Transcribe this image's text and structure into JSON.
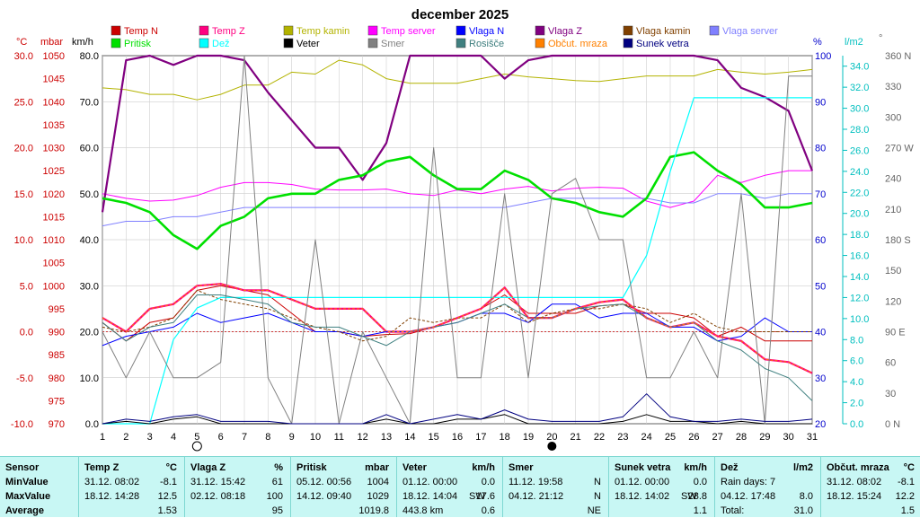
{
  "chart_data": {
    "type": "line",
    "title": "december 2025",
    "x": [
      1,
      2,
      3,
      4,
      5,
      6,
      7,
      8,
      9,
      10,
      11,
      12,
      13,
      14,
      15,
      16,
      17,
      18,
      19,
      20,
      21,
      22,
      23,
      24,
      25,
      26,
      27,
      28,
      29,
      30,
      31
    ],
    "axes": {
      "temp": {
        "label": "°C",
        "range": [
          -10,
          30
        ],
        "ticks": [
          "30.0",
          "25.0",
          "20.0",
          "15.0",
          "10.0",
          "5.0",
          "0.0",
          "-5.0",
          "-10.0"
        ]
      },
      "pressure": {
        "label": "mbar",
        "range": [
          970,
          1050
        ],
        "ticks": [
          "1050",
          "1045",
          "1040",
          "1035",
          "1030",
          "1025",
          "1020",
          "1015",
          "1010",
          "1005",
          "1000",
          "995",
          "990",
          "985",
          "980",
          "975",
          "970"
        ]
      },
      "wind": {
        "label": "km/h",
        "range": [
          0,
          80
        ],
        "ticks": [
          "80.0",
          "70.0",
          "60.0",
          "50.0",
          "40.0",
          "30.0",
          "20.0",
          "10.0",
          "0.0"
        ]
      },
      "humidity": {
        "label": "%",
        "range": [
          20,
          100
        ],
        "ticks": [
          "100",
          "90",
          "80",
          "70",
          "60",
          "50",
          "40",
          "30",
          "20"
        ]
      },
      "rain": {
        "label": "l/m2",
        "range": [
          0,
          35
        ],
        "ticks": [
          "34.0",
          "32.0",
          "30.0",
          "28.0",
          "26.0",
          "24.0",
          "22.0",
          "20.0",
          "18.0",
          "16.0",
          "14.0",
          "12.0",
          "10.0",
          "8.0",
          "6.0",
          "4.0",
          "2.0",
          "0.0"
        ]
      },
      "direction": {
        "label": "°",
        "range": [
          0,
          360
        ],
        "ticks": [
          "360 N",
          "330",
          "300",
          "270 W",
          "240",
          "210",
          "180 S",
          "150",
          "120",
          "90 E",
          "60",
          "30",
          "0 N"
        ]
      }
    },
    "series": [
      {
        "name": "Temp N",
        "color": "#cc0000",
        "axis": "temp",
        "values": [
          1,
          -1,
          1,
          1.5,
          4.5,
          5,
          4.5,
          4,
          2,
          0,
          0,
          -0.5,
          -0.3,
          -0.2,
          0.5,
          1.5,
          2.5,
          4,
          2,
          2,
          2,
          2.8,
          3,
          2,
          2,
          1.5,
          -0.5,
          0.5,
          -1,
          -1,
          -1
        ]
      },
      {
        "name": "Temp Z",
        "color": "#ff0080",
        "axis": "temp",
        "values": [
          1.5,
          0,
          2.5,
          3,
          5,
          5.2,
          4.5,
          4.5,
          3.5,
          2.5,
          2.5,
          2.5,
          0,
          0,
          0.5,
          1.5,
          2.5,
          4.8,
          1.5,
          1.5,
          2.5,
          3.2,
          3.5,
          1.5,
          0.5,
          1,
          -0.5,
          -1,
          -3,
          -3.3,
          -4.5
        ]
      },
      {
        "name": "Temp kamin",
        "color": "#b3b300",
        "axis": "temp",
        "values": [
          26.5,
          26.3,
          25.8,
          25.8,
          25.2,
          25.8,
          26.8,
          26.8,
          28.2,
          28,
          29.5,
          29,
          27.5,
          27,
          27,
          27,
          27.5,
          28,
          27.7,
          27.5,
          27.3,
          27.2,
          27.5,
          27.8,
          27.8,
          27.8,
          28.5,
          28.2,
          28,
          28.2,
          28.5
        ]
      },
      {
        "name": "Temp server",
        "color": "#ff00ff",
        "axis": "temp",
        "values": [
          15,
          14.5,
          14.2,
          14.3,
          14.8,
          15.7,
          16.2,
          16.2,
          16,
          15.5,
          15.4,
          15.4,
          15.5,
          15,
          14.8,
          15.4,
          15,
          15.5,
          15.8,
          15.3,
          15.6,
          15.7,
          15.6,
          14.2,
          13.5,
          14.2,
          17,
          16.2,
          17,
          17.5,
          17.5
        ]
      },
      {
        "name": "Vlaga N",
        "color": "#0000ff",
        "axis": "humidity",
        "values": [
          37,
          39,
          40,
          41,
          44,
          42,
          43,
          44,
          42,
          40,
          40,
          39,
          40,
          40,
          41,
          42,
          44,
          44,
          42,
          46,
          46,
          43,
          44,
          44,
          41,
          41,
          38,
          39,
          43,
          40,
          40
        ]
      },
      {
        "name": "Vlaga Z",
        "color": "#800080",
        "axis": "humidity",
        "values": [
          66,
          99,
          100,
          98,
          100,
          100,
          99,
          92,
          86,
          80,
          80,
          73,
          81,
          100,
          100,
          100,
          100,
          95,
          99,
          100,
          100,
          100,
          100,
          100,
          100,
          100,
          99,
          93,
          91,
          88,
          75
        ]
      },
      {
        "name": "Vlaga kamin",
        "color": "#804000",
        "axis": "humidity",
        "values": [
          41,
          40,
          41,
          43,
          49,
          47,
          46,
          45,
          43,
          41,
          40,
          38,
          39,
          43,
          42,
          43,
          43,
          46,
          42,
          44,
          45,
          45,
          46,
          45,
          42,
          44,
          41,
          40,
          40,
          40,
          40
        ]
      },
      {
        "name": "Vlaga server",
        "color": "#8080ff",
        "axis": "humidity",
        "values": [
          63,
          64,
          64,
          65,
          65,
          66,
          67,
          67,
          67,
          67,
          67,
          67,
          67,
          67,
          67,
          67,
          67,
          67,
          68,
          69,
          69,
          69,
          69,
          69,
          68,
          68,
          70,
          70,
          69,
          70,
          70
        ]
      },
      {
        "name": "Pritisk",
        "color": "#00e000",
        "axis": "pressure",
        "values": [
          1019,
          1018,
          1016,
          1011,
          1008,
          1013,
          1015,
          1019,
          1020,
          1020,
          1023,
          1024,
          1027,
          1028,
          1024,
          1021,
          1021,
          1025,
          1023,
          1019,
          1018,
          1016,
          1015,
          1019,
          1028,
          1029,
          1025,
          1022,
          1017,
          1017,
          1018
        ]
      },
      {
        "name": "Dež",
        "color": "#00ffff",
        "axis": "rain",
        "values": [
          0,
          0,
          0,
          8,
          11,
          12,
          12,
          12,
          12,
          12,
          12,
          12,
          12,
          12,
          12,
          12,
          12,
          12,
          12,
          12,
          12,
          12,
          12,
          16,
          24,
          31,
          31,
          31,
          31,
          31,
          31
        ]
      },
      {
        "name": "Veter",
        "color": "#000000",
        "axis": "wind",
        "values": [
          0,
          0.5,
          0,
          1,
          1.5,
          0,
          0,
          0,
          0,
          0,
          0,
          0,
          1,
          0,
          0,
          1,
          1,
          2,
          0,
          0,
          0,
          0,
          0.5,
          2,
          0.5,
          0.5,
          0,
          0.5,
          0,
          0,
          0
        ]
      },
      {
        "name": "Smer",
        "color": "#808080",
        "axis": "direction",
        "values": [
          90,
          45,
          90,
          45,
          45,
          60,
          360,
          45,
          0,
          180,
          0,
          90,
          45,
          0,
          270,
          45,
          45,
          225,
          45,
          225,
          240,
          180,
          180,
          45,
          45,
          90,
          45,
          225,
          0,
          340,
          340
        ]
      },
      {
        "name": "Rosišče",
        "color": "#408080",
        "axis": "temp",
        "values": [
          1,
          -1,
          0.5,
          1,
          4,
          4,
          3.5,
          3,
          1,
          0.5,
          0.5,
          -0.5,
          -1.5,
          0,
          0.5,
          1,
          2,
          3,
          1.5,
          1.5,
          2.5,
          2.8,
          3,
          1.5,
          0.5,
          1,
          -1,
          -2,
          -4,
          -5,
          -7.5
        ]
      },
      {
        "name": "Občut. mraza",
        "color": "#ff8000",
        "axis": "temp",
        "values": [
          1.5,
          0,
          2.5,
          3,
          5,
          5.2,
          4.5,
          4.5,
          3.5,
          2.5,
          2.5,
          2.5,
          0,
          0,
          0.5,
          1.5,
          2.5,
          4.8,
          1.5,
          1.5,
          2.5,
          3.2,
          3.5,
          1.5,
          0.5,
          1,
          -0.5,
          -1,
          -3,
          -3.3,
          -4.5
        ]
      },
      {
        "name": "Sunek vetra",
        "color": "#000080",
        "axis": "wind",
        "values": [
          0,
          1,
          0.5,
          1.5,
          2,
          0.5,
          0.5,
          0.5,
          0,
          0,
          0,
          0,
          2,
          0,
          1,
          2,
          1,
          3,
          1,
          0.5,
          0.5,
          0.5,
          1.5,
          6.5,
          1.5,
          0.5,
          0.5,
          1,
          0.5,
          0.5,
          1
        ]
      }
    ],
    "moon_phases": [
      {
        "day": 5,
        "phase": "full"
      },
      {
        "day": 20,
        "phase": "new"
      }
    ]
  },
  "stats": {
    "sensor": {
      "label": "Sensor",
      "min": "MinValue",
      "max": "MaxValue",
      "avg": "Average"
    },
    "temp_z": {
      "title": "Temp Z",
      "unit": "°C",
      "min_time": "31.12. 08:02",
      "min_val": "-8.1",
      "max_time": "18.12. 14:28",
      "max_val": "12.5",
      "avg": "1.53"
    },
    "vlaga_z": {
      "title": "Vlaga Z",
      "unit": "%",
      "min_time": "31.12. 15:42",
      "min_val": "61",
      "max_time": "02.12. 08:18",
      "max_val": "100",
      "avg": "95"
    },
    "pritisk": {
      "title": "Pritisk",
      "unit": "mbar",
      "min_time": "05.12. 00:56",
      "min_val": "1004",
      "max_time": "14.12. 09:40",
      "max_val": "1029",
      "avg": "1019.8"
    },
    "veter": {
      "title": "Veter",
      "unit": "km/h",
      "min_time": "01.12. 00:00",
      "min_val": "0.0",
      "max_time": "18.12. 14:04",
      "max_dir": "SW",
      "max_val": "17.6",
      "avg_extra": "443.8 km",
      "avg": "0.6"
    },
    "smer": {
      "title": "Smer",
      "min_time": "11.12. 19:58",
      "min_val": "N",
      "max_time": "04.12. 21:12",
      "max_val": "N",
      "avg": "NE"
    },
    "sunek": {
      "title": "Sunek vetra",
      "unit": "km/h",
      "min_time": "01.12. 00:00",
      "min_val": "0.0",
      "max_time": "18.12. 14:02",
      "max_dir": "SW",
      "max_val": "28.8",
      "avg": "1.1"
    },
    "dez": {
      "title": "Dež",
      "unit": "l/m2",
      "min_label": "Rain days: 7",
      "max_time": "04.12. 17:48",
      "max_val": "8.0",
      "avg_label": "Total:",
      "avg": "31.0"
    },
    "obcut": {
      "title": "Občut. mraza",
      "unit": "°C",
      "min_time": "31.12. 08:02",
      "min_val": "-8.1",
      "max_time": "18.12. 15:24",
      "max_val": "12.2",
      "avg": "1.5"
    }
  }
}
